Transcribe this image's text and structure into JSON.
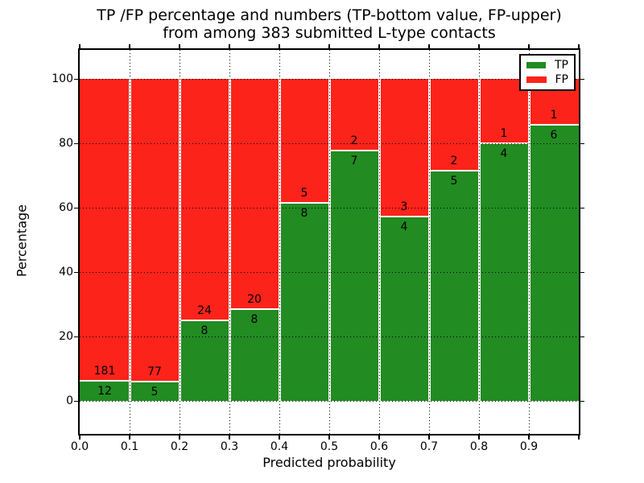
{
  "chart_data": {
    "type": "bar",
    "stacked": true,
    "normalized": "each bin stacked to 100%",
    "title_line1": "TP /FP percentage and numbers (TP-bottom value, FP-upper)",
    "title_line2": "from among 383 submitted L-type contacts",
    "xlabel": "Predicted probability",
    "ylabel": "Percentage",
    "total_contacts": 383,
    "categories": [
      "0.0-0.1",
      "0.1-0.2",
      "0.2-0.3",
      "0.3-0.4",
      "0.4-0.5",
      "0.5-0.6",
      "0.6-0.7",
      "0.7-0.8",
      "0.8-0.9",
      "0.9-1.0"
    ],
    "series": [
      {
        "name": "TP",
        "color": "#228b22",
        "counts": [
          12,
          5,
          8,
          8,
          8,
          7,
          4,
          5,
          4,
          6
        ]
      },
      {
        "name": "FP",
        "color": "#fc231a",
        "counts": [
          181,
          77,
          24,
          20,
          5,
          2,
          3,
          2,
          1,
          1
        ]
      }
    ],
    "tp_percent": [
      6.22,
      6.1,
      25.0,
      28.57,
      61.54,
      77.78,
      57.14,
      71.43,
      80.0,
      85.71
    ],
    "xticks": [
      "0.0",
      "0.1",
      "0.2",
      "0.3",
      "0.4",
      "0.5",
      "0.6",
      "0.7",
      "0.8",
      "0.9"
    ],
    "yticks": [
      0,
      20,
      40,
      60,
      80,
      100
    ],
    "xlim": [
      0.0,
      1.0
    ],
    "ylim": [
      -10.25,
      109.0
    ],
    "grid": "dotted",
    "legend_position": "upper right",
    "annotation_note": "FP count printed just above each TP/FP boundary, TP count just below"
  }
}
